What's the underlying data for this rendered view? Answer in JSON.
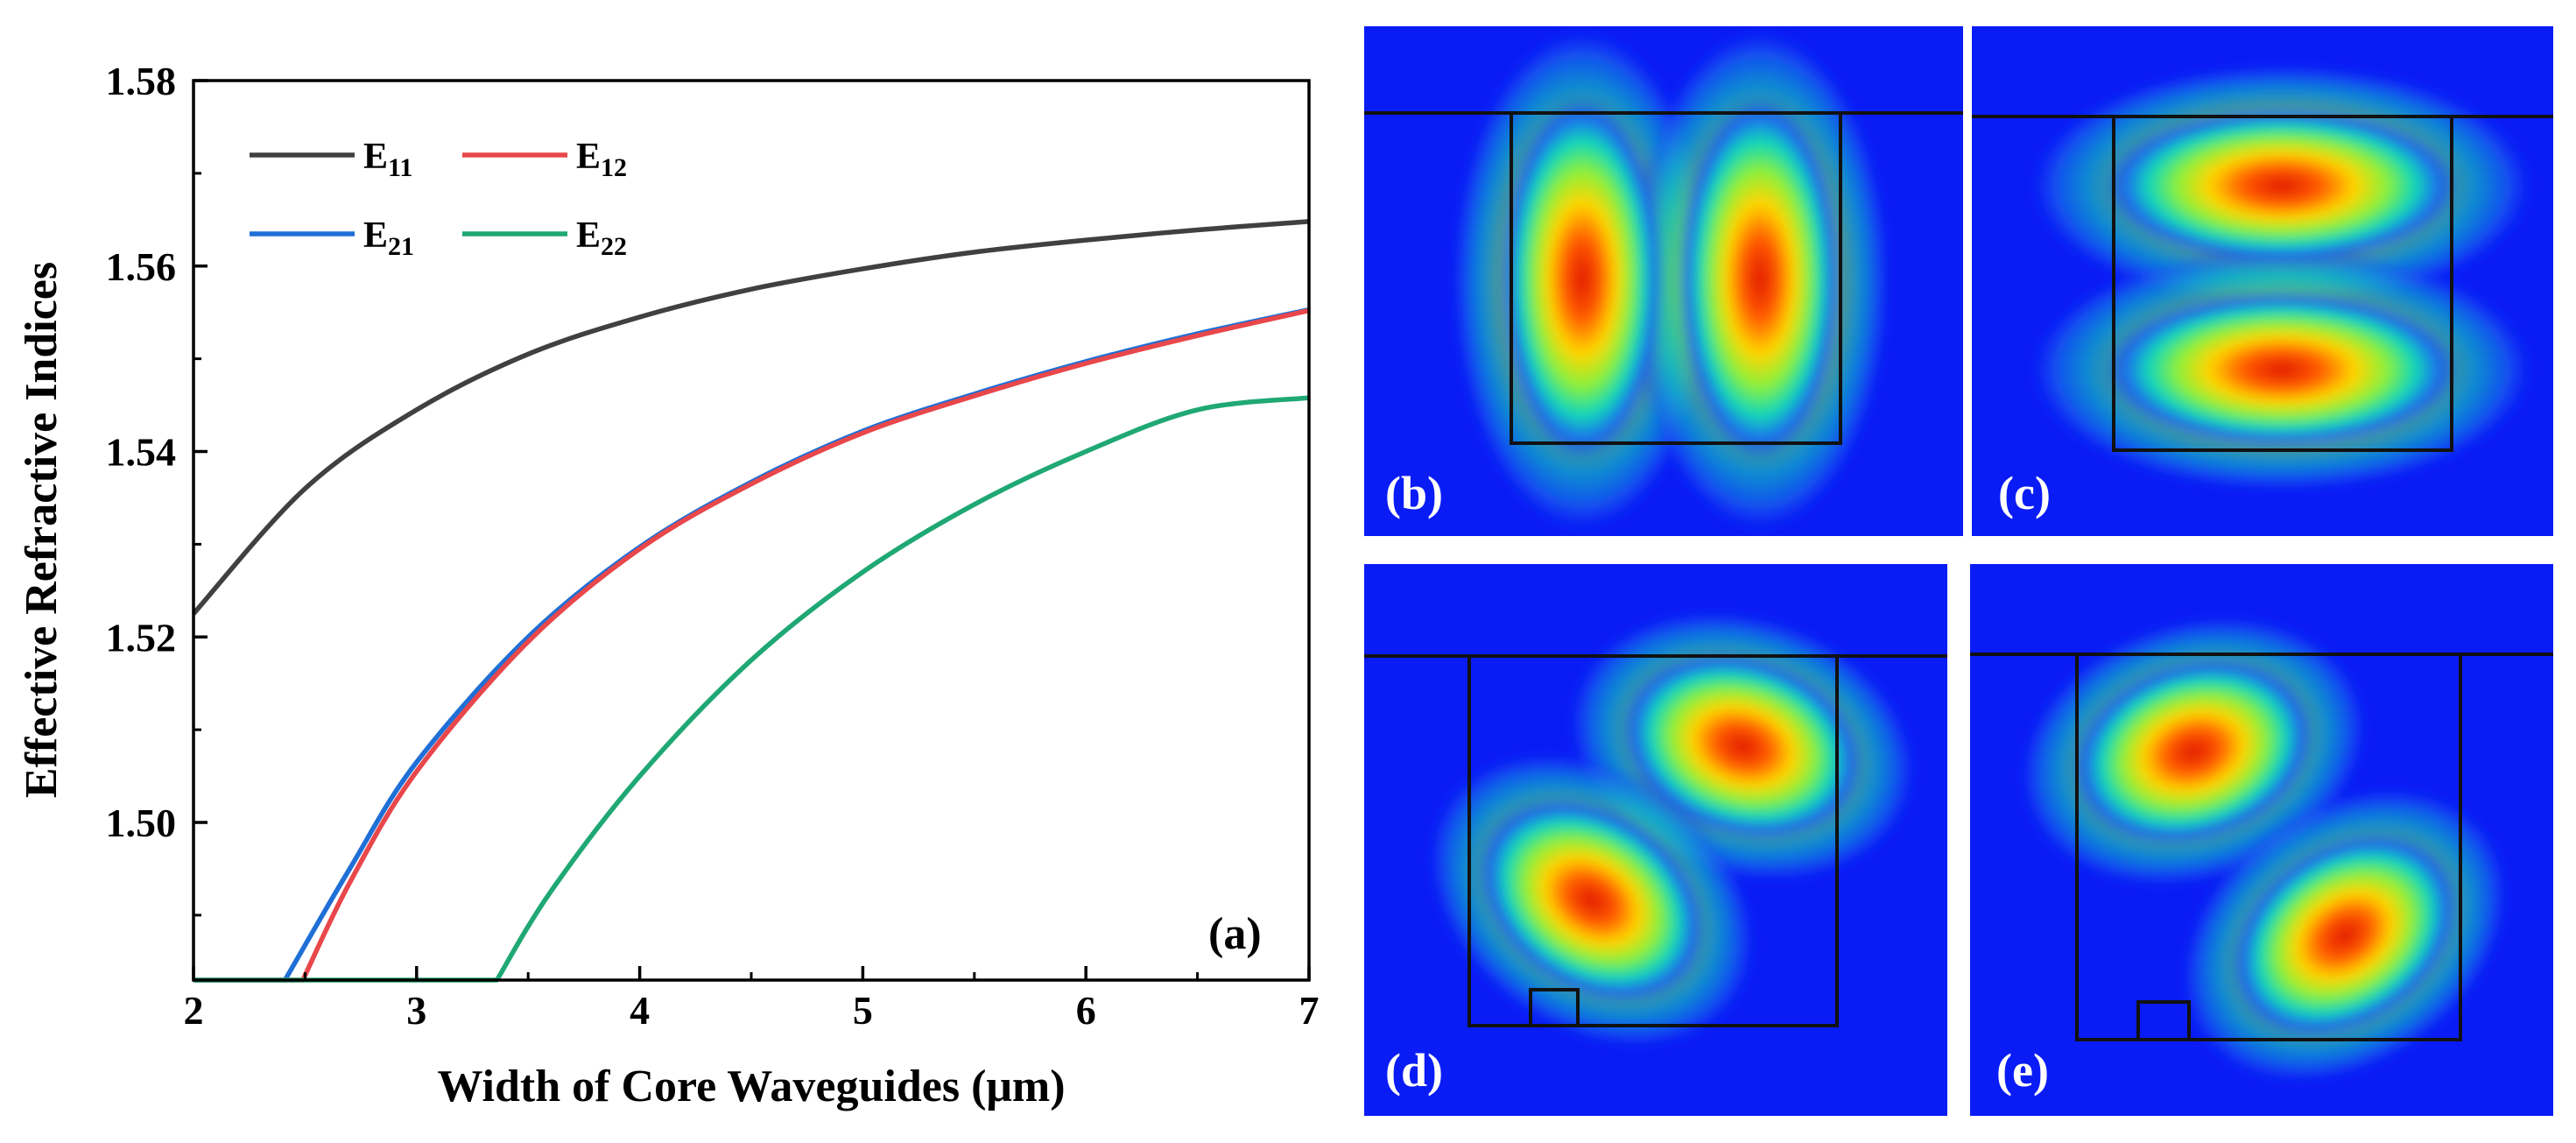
{
  "chart_data": {
    "type": "line",
    "panel_label": "(a)",
    "xlabel": "Width of Core Waveguides (μm)",
    "ylabel": "Effective Refractive Indices",
    "xlim": [
      2,
      7
    ],
    "ylim": [
      1.483,
      1.58
    ],
    "xticks": [
      2,
      3,
      4,
      5,
      6,
      7
    ],
    "yticks": [
      1.5,
      1.52,
      1.54,
      1.56,
      1.58
    ],
    "ytick_labels": [
      "1.50",
      "1.52",
      "1.54",
      "1.56",
      "1.58"
    ],
    "grid": false,
    "legend_position": "top-left",
    "series": [
      {
        "name": "E11",
        "base": "E",
        "sub": "11",
        "color": "#404040",
        "x": [
          2.0,
          2.5,
          3.0,
          3.5,
          4.0,
          4.5,
          5.0,
          5.5,
          6.0,
          6.5,
          7.0
        ],
        "y": [
          1.5225,
          1.536,
          1.5445,
          1.5505,
          1.5545,
          1.5575,
          1.5597,
          1.5615,
          1.5628,
          1.5639,
          1.5648
        ]
      },
      {
        "name": "E12",
        "base": "E",
        "sub": "12",
        "color": "#e8474b",
        "x": [
          2.49,
          2.7,
          3.0,
          3.5,
          4.0,
          4.5,
          5.0,
          5.5,
          6.0,
          6.5,
          7.0
        ],
        "y": [
          1.483,
          1.4935,
          1.5055,
          1.5195,
          1.5295,
          1.5365,
          1.542,
          1.546,
          1.5495,
          1.5525,
          1.5552
        ]
      },
      {
        "name": "E21",
        "base": "E",
        "sub": "21",
        "color": "#1f6fd6",
        "x": [
          2.41,
          2.7,
          3.0,
          3.5,
          4.0,
          4.5,
          5.0,
          5.5,
          6.0,
          6.5,
          7.0
        ],
        "y": [
          1.483,
          1.495,
          1.5065,
          1.52,
          1.5297,
          1.5367,
          1.5422,
          1.5462,
          1.5497,
          1.5527,
          1.5553
        ]
      },
      {
        "name": "E22",
        "base": "E",
        "sub": "22",
        "color": "#1fa874",
        "x": [
          3.36,
          3.6,
          4.0,
          4.5,
          5.0,
          5.5,
          6.0,
          6.5,
          7.0
        ],
        "y": [
          1.483,
          1.4925,
          1.505,
          1.5175,
          1.527,
          1.5343,
          1.54,
          1.5445,
          1.5458
        ]
      }
    ],
    "cutoff_level": 1.483
  },
  "mode_panels": [
    {
      "label": "(b)"
    },
    {
      "label": "(c)"
    },
    {
      "label": "(d)"
    },
    {
      "label": "(e)"
    }
  ]
}
